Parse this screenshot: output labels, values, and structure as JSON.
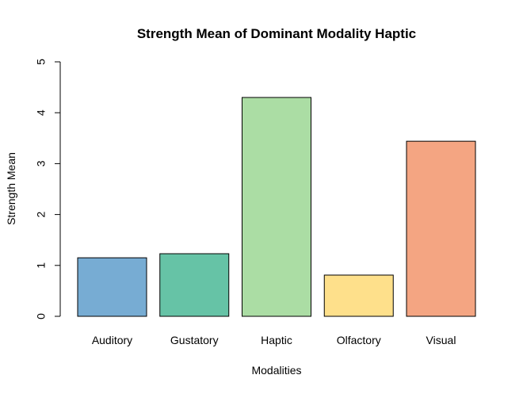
{
  "chart_data": {
    "type": "bar",
    "title": "Strength Mean of Dominant Modality Haptic",
    "xlabel": "Modalities",
    "ylabel": "Strength Mean",
    "categories": [
      "Auditory",
      "Gustatory",
      "Haptic",
      "Olfactory",
      "Visual"
    ],
    "values": [
      1.15,
      1.23,
      4.3,
      0.81,
      3.44
    ],
    "colors": [
      "#77ACD3",
      "#66C3A6",
      "#ABDDA4",
      "#FEE08B",
      "#F4A582"
    ],
    "ylim": [
      0,
      5
    ],
    "yticks": [
      0,
      1,
      2,
      3,
      4,
      5
    ],
    "grid": false,
    "legend": false
  }
}
